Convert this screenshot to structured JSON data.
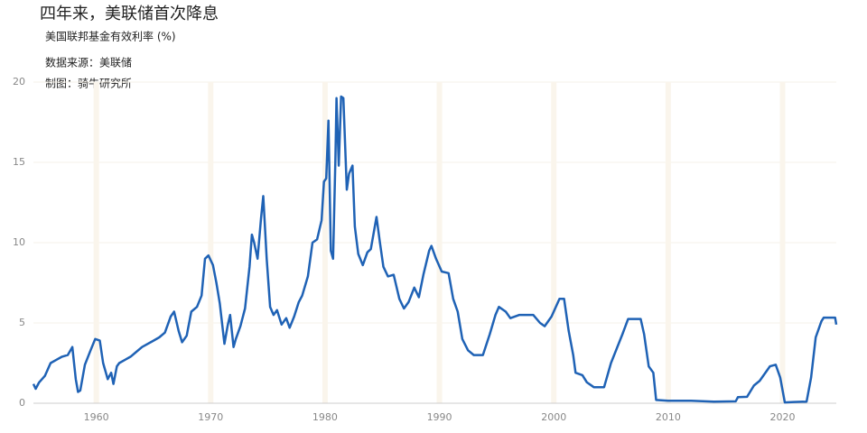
{
  "chart_data": {
    "type": "line",
    "title": "四年来，美联储首次降息",
    "subtitle": "美国联邦基金有效利率 (%)",
    "source": "数据来源：美联储",
    "credit": "制图：骑牛研究所",
    "color": "#1f62b5",
    "grid": true,
    "xlim": [
      1954.5,
      2024.7
    ],
    "xticks": [
      1960,
      1970,
      1980,
      1990,
      2000,
      2010,
      2020
    ],
    "ylim": [
      0,
      20
    ],
    "yticks": [
      0,
      5,
      10,
      15,
      20
    ],
    "x": [
      1954.5,
      1954.7,
      1955.0,
      1955.5,
      1956,
      1956.5,
      1957,
      1957.5,
      1957.9,
      1958.2,
      1958.4,
      1958.6,
      1959,
      1959.5,
      1959.9,
      1960.3,
      1960.6,
      1961,
      1961.3,
      1961.5,
      1961.8,
      1962,
      1962.5,
      1963,
      1963.5,
      1964,
      1965,
      1965.5,
      1966,
      1966.5,
      1966.8,
      1967.2,
      1967.5,
      1967.9,
      1968.3,
      1968.8,
      1969.2,
      1969.5,
      1969.8,
      1970.2,
      1970.5,
      1970.8,
      1971.2,
      1971.5,
      1971.7,
      1972,
      1972.2,
      1972.6,
      1973,
      1973.4,
      1973.6,
      1973.8,
      1974.1,
      1974.4,
      1974.6,
      1974.9,
      1975.2,
      1975.5,
      1975.8,
      1976.2,
      1976.6,
      1976.9,
      1977.3,
      1977.7,
      1978,
      1978.5,
      1978.9,
      1979.3,
      1979.7,
      1979.9,
      1980.1,
      1980.3,
      1980.5,
      1980.7,
      1980.9,
      1981.0,
      1981.2,
      1981.4,
      1981.6,
      1981.9,
      1982.1,
      1982.4,
      1982.6,
      1982.9,
      1983.3,
      1983.7,
      1984,
      1984.5,
      1984.8,
      1985.1,
      1985.5,
      1986,
      1986.5,
      1986.9,
      1987.3,
      1987.8,
      1988.2,
      1988.6,
      1989.1,
      1989.3,
      1989.7,
      1990.2,
      1990.8,
      1991.2,
      1991.6,
      1992,
      1992.5,
      1993,
      1993.8,
      1994.4,
      1994.9,
      1995.2,
      1995.8,
      1996.2,
      1997,
      1998.2,
      1998.8,
      1999.2,
      1999.8,
      2000.5,
      2000.9,
      2001.3,
      2001.7,
      2001.9,
      2002.5,
      2002.9,
      2003.5,
      2004.4,
      2005,
      2006,
      2006.5,
      2007.6,
      2007.9,
      2008.3,
      2008.7,
      2008.95,
      2010,
      2012,
      2014,
      2015.9,
      2016.1,
      2016.9,
      2017.5,
      2018,
      2018.9,
      2019.4,
      2019.8,
      2020.2,
      2021,
      2022.1,
      2022.5,
      2022.9,
      2023.4,
      2023.6,
      2024.6,
      2024.7
    ],
    "values": [
      1.2,
      0.9,
      1.3,
      1.7,
      2.5,
      2.7,
      2.9,
      3.0,
      3.5,
      1.5,
      0.7,
      0.8,
      2.4,
      3.3,
      4.0,
      3.9,
      2.5,
      1.5,
      1.9,
      1.2,
      2.3,
      2.5,
      2.7,
      2.9,
      3.2,
      3.5,
      3.9,
      4.1,
      4.4,
      5.4,
      5.7,
      4.5,
      3.8,
      4.2,
      5.7,
      6.0,
      6.7,
      9.0,
      9.2,
      8.6,
      7.5,
      6.2,
      3.7,
      4.9,
      5.5,
      3.5,
      4.0,
      4.8,
      5.9,
      8.5,
      10.5,
      10.0,
      9.0,
      11.5,
      12.9,
      9.0,
      6.0,
      5.5,
      5.8,
      4.9,
      5.3,
      4.7,
      5.4,
      6.3,
      6.7,
      7.9,
      10.0,
      10.2,
      11.4,
      13.8,
      14.0,
      17.6,
      9.5,
      9.0,
      15.0,
      19.0,
      14.8,
      19.1,
      19.0,
      13.3,
      14.3,
      14.8,
      11.0,
      9.3,
      8.6,
      9.4,
      9.6,
      11.6,
      10.0,
      8.5,
      7.9,
      8.0,
      6.5,
      5.9,
      6.3,
      7.2,
      6.6,
      8.0,
      9.5,
      9.8,
      9.0,
      8.2,
      8.1,
      6.5,
      5.7,
      4.0,
      3.3,
      3.0,
      3.0,
      4.3,
      5.5,
      6.0,
      5.7,
      5.3,
      5.5,
      5.5,
      5.0,
      4.8,
      5.4,
      6.5,
      6.5,
      4.5,
      3.0,
      1.9,
      1.75,
      1.3,
      1.0,
      1.0,
      2.5,
      4.3,
      5.25,
      5.25,
      4.3,
      2.3,
      1.9,
      0.2,
      0.15,
      0.15,
      0.1,
      0.12,
      0.38,
      0.4,
      1.1,
      1.4,
      2.3,
      2.4,
      1.6,
      0.05,
      0.08,
      0.1,
      1.6,
      4.1,
      5.1,
      5.33,
      5.33,
      4.9
    ]
  }
}
